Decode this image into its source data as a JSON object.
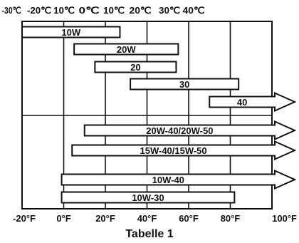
{
  "chart_data": {
    "type": "range-bar",
    "title": "Tabelle 1",
    "top_axis": {
      "unit": "°C",
      "ticks": [
        "-30℃",
        "-20℃",
        "10℃",
        "0℃",
        "10℃",
        "20℃",
        "30℃",
        "40℃"
      ]
    },
    "bottom_axis": {
      "unit": "°F",
      "range": [
        -20,
        100
      ],
      "ticks": [
        "-20°F",
        "0°F",
        "20°F",
        "40°F",
        "60°F",
        "80°F",
        "100°F"
      ]
    },
    "grid": true,
    "bars": [
      {
        "label": "10W",
        "min_f": -20,
        "max_f": 27
      },
      {
        "label": "20W",
        "min_f": 5,
        "max_f": 55
      },
      {
        "label": "20",
        "min_f": 15,
        "max_f": 54
      },
      {
        "label": "30",
        "min_f": 32,
        "max_f": 84
      },
      {
        "label": "40",
        "min_f": 70,
        "max_f": 100,
        "open_ended": true
      },
      {
        "label": "20W-40/20W-50",
        "min_f": 10,
        "max_f": 100,
        "open_ended": true
      },
      {
        "label": "15W-40/15W-50",
        "min_f": 4,
        "max_f": 100,
        "open_ended": true
      },
      {
        "label": "10W-40",
        "min_f": -1,
        "max_f": 100,
        "open_ended": true
      },
      {
        "label": "10W-30",
        "min_f": -1,
        "max_f": 82
      }
    ]
  },
  "caption": "Tabelle 1"
}
